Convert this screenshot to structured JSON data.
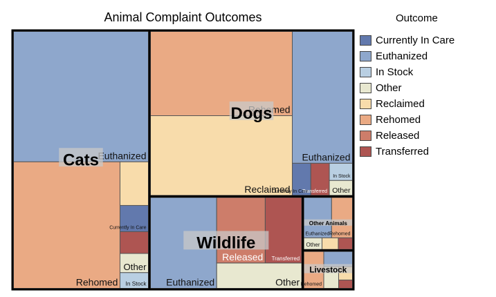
{
  "chart_data": {
    "type": "treemap",
    "title": "Animal Complaint Outcomes",
    "legend_title": "Outcome",
    "legend_position": "right",
    "colors": {
      "Currently In Care": "#6279ad",
      "Euthanized": "#8ea7cc",
      "In Stock": "#b9cfe2",
      "Other": "#e8e8d0",
      "Reclaimed": "#f8dcab",
      "Rehomed": "#eaaa84",
      "Released": "#cd7d6a",
      "Transferred": "#ae5552"
    },
    "groups": [
      {
        "name": "Dogs",
        "cells": [
          {
            "outcome": "Reclaimed",
            "value": 2280,
            "label": "Reclaimed"
          },
          {
            "outcome": "Rehomed",
            "value": 2410,
            "label": "Rehomed"
          },
          {
            "outcome": "Euthanized",
            "value": 1600,
            "label": "Euthanized"
          },
          {
            "outcome": "Currently In Care",
            "value": 120,
            "label": "Currently In Care"
          },
          {
            "outcome": "Transferred",
            "value": 120,
            "label": "Transferred"
          },
          {
            "outcome": "Other",
            "value": 70,
            "label": "Other"
          },
          {
            "outcome": "In Stock",
            "value": 80,
            "label": "In Stock"
          }
        ]
      },
      {
        "name": "Cats",
        "cells": [
          {
            "outcome": "Euthanized",
            "value": 3550,
            "label": "Euthanized"
          },
          {
            "outcome": "Rehomed",
            "value": 2720,
            "label": "Rehomed"
          },
          {
            "outcome": "Reclaimed",
            "value": 250,
            "label": ""
          },
          {
            "outcome": "Currently In Care",
            "value": 150,
            "label": "Currently In Care"
          },
          {
            "outcome": "Transferred",
            "value": 125,
            "label": ""
          },
          {
            "outcome": "Other",
            "value": 110,
            "label": "Other"
          },
          {
            "outcome": "In Stock",
            "value": 90,
            "label": "In Stock"
          }
        ]
      },
      {
        "name": "Wildlife",
        "cells": [
          {
            "outcome": "Euthanized",
            "value": 1230,
            "label": "Euthanized"
          },
          {
            "outcome": "Transferred",
            "value": 490,
            "label": "Transferred"
          },
          {
            "outcome": "Released",
            "value": 650,
            "label": "Released"
          },
          {
            "outcome": "Other",
            "value": 440,
            "label": "Other"
          }
        ]
      },
      {
        "name": "Other Animals",
        "cells": [
          {
            "outcome": "Euthanized",
            "value": 240,
            "label": "Euthanized"
          },
          {
            "outcome": "Rehomed",
            "value": 180,
            "label": "Rehomed"
          },
          {
            "outcome": "Other",
            "value": 45,
            "label": "Other"
          },
          {
            "outcome": "Reclaimed",
            "value": 40,
            "label": ""
          },
          {
            "outcome": "Transferred",
            "value": 35,
            "label": ""
          }
        ]
      },
      {
        "name": "Livestock",
        "cells": [
          {
            "outcome": "Rehomed",
            "value": 160,
            "label": "Rehomed"
          },
          {
            "outcome": "Euthanized",
            "value": 95,
            "label": ""
          },
          {
            "outcome": "Other",
            "value": 70,
            "label": ""
          },
          {
            "outcome": "Reclaimed",
            "value": 40,
            "label": ""
          },
          {
            "outcome": "Transferred",
            "value": 25,
            "label": ""
          }
        ]
      }
    ]
  }
}
